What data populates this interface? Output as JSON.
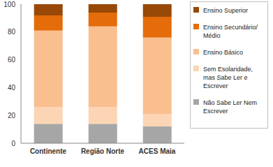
{
  "chart_data": {
    "type": "bar",
    "categories": [
      "Continente",
      "Região Norte",
      "ACES Maia"
    ],
    "series": [
      {
        "name": "Não Sabe Ler Nem Escrever",
        "color": "#a6a6a6",
        "values": [
          14,
          14,
          12
        ]
      },
      {
        "name": "Sem Esolaridade, mas Sabe Ler e Escrever",
        "color": "#fcd5b4",
        "values": [
          12,
          12,
          9
        ]
      },
      {
        "name": "Ensino Básico",
        "color": "#fabf8f",
        "values": [
          55,
          58,
          55
        ]
      },
      {
        "name": "Ensino Secundário/ Médio",
        "color": "#e46c0a",
        "values": [
          11,
          10,
          15
        ]
      },
      {
        "name": "Ensino Superior",
        "color": "#984807",
        "values": [
          8,
          6,
          9
        ]
      }
    ],
    "ylim": [
      0,
      100
    ],
    "yticks": [
      0,
      20,
      40,
      60,
      80,
      100
    ],
    "stacked": true,
    "grid": false,
    "legend": "right"
  }
}
